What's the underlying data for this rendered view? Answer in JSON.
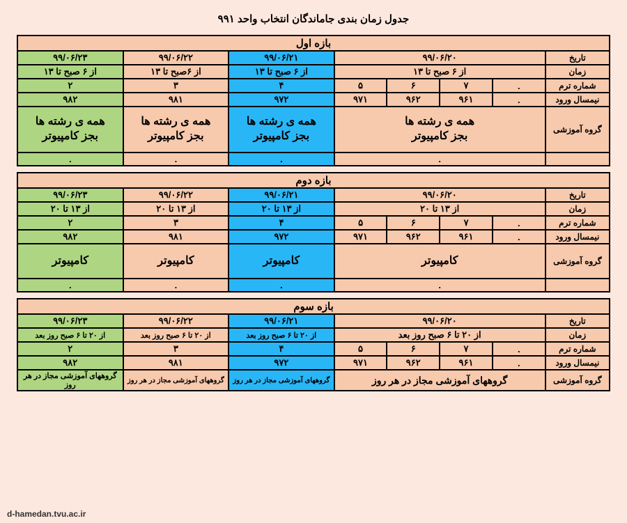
{
  "title": "جدول زمان بندی جاماندگان انتخاب واحد ۹۹۱",
  "footer_url": "d-hamedan.tvu.ac.ir",
  "row_labels": {
    "date": "تاریخ",
    "time": "زمان",
    "term_no": "شماره ترم",
    "entry_sem": "نیمسال ورود",
    "edu_group": "گروه آموزشی"
  },
  "sections": [
    {
      "header": "بازه اول",
      "dates": {
        "wide": "۹۹/۰۶/۲۰",
        "blue": "۹۹/۰۶/۲۱",
        "peach": "۹۹/۰۶/۲۲",
        "green": "۹۹/۰۶/۲۳"
      },
      "times": {
        "wide": "از ۶ صبح تا ۱۳",
        "blue": "از ۶ صبح تا ۱۳",
        "peach": "از ۶صبح تا ۱۳",
        "green": "از ۶ صبح تا ۱۳"
      },
      "terms": {
        "sub": [
          "۷",
          "۶",
          "۵"
        ],
        "subX": ".",
        "blue": "۴",
        "peach": "۳",
        "green": "۲"
      },
      "entry": {
        "sub": [
          "۹۶۱",
          "۹۶۲",
          "۹۷۱"
        ],
        "subX": ".",
        "blue": "۹۷۲",
        "peach": "۹۸۱",
        "green": "۹۸۲"
      },
      "group": {
        "wide": "همه ی رشته ها\nبجز کامپیوتر",
        "blue": "همه ی رشته ها\nبجز کامپیوتر",
        "peach": "همه ی رشته ها\nبجز کامپیوتر",
        "green": "همه ی رشته ها\nبجز کامپیوتر"
      },
      "empty": {
        "wide": ".",
        "blue": ".",
        "peach": ".",
        "green": "."
      }
    },
    {
      "header": "بازه دوم",
      "dates": {
        "wide": "۹۹/۰۶/۲۰",
        "blue": "۹۹/۰۶/۲۱",
        "peach": "۹۹/۰۶/۲۲",
        "green": "۹۹/۰۶/۲۳"
      },
      "times": {
        "wide": "از ۱۳ تا ۲۰",
        "blue": "از ۱۳ تا ۲۰",
        "peach": "از ۱۳ تا ۲۰",
        "green": "از ۱۳ تا ۲۰"
      },
      "terms": {
        "sub": [
          "۷",
          "۶",
          "۵"
        ],
        "subX": ".",
        "blue": "۴",
        "peach": "۳",
        "green": "۲"
      },
      "entry": {
        "sub": [
          "۹۶۱",
          "۹۶۲",
          "۹۷۱"
        ],
        "subX": ".",
        "blue": "۹۷۲",
        "peach": "۹۸۱",
        "green": "۹۸۲"
      },
      "group": {
        "wide": "کامپیوتر",
        "blue": "کامپیوتر",
        "peach": "کامپیوتر",
        "green": "کامپیوتر"
      },
      "empty": {
        "wide": ".",
        "blue": ".",
        "peach": ".",
        "green": "."
      }
    },
    {
      "header": "بازه سوم",
      "dates": {
        "wide": "۹۹/۰۶/۲۰",
        "blue": "۹۹/۰۶/۲۱",
        "peach": "۹۹/۰۶/۲۲",
        "green": "۹۹/۰۶/۲۳"
      },
      "times": {
        "wide": "از ۲۰ تا ۶ صبح روز بعد",
        "blue": "از ۲۰ تا ۶ صبح روز بعد",
        "peach": "از ۲۰ تا ۶ صبح روز بعد",
        "green": "از ۲۰ تا ۶ صبح روز بعد"
      },
      "terms": {
        "sub": [
          "۷",
          "۶",
          "۵"
        ],
        "subX": ".",
        "blue": "۴",
        "peach": "۳",
        "green": "۲"
      },
      "entry": {
        "sub": [
          "۹۶۱",
          "۹۶۲",
          "۹۷۱"
        ],
        "subX": ".",
        "blue": "۹۷۲",
        "peach": "۹۸۱",
        "green": "۹۸۲"
      },
      "group": {
        "wide": "گروههای آموزشی مجاز در هر روز",
        "blue": "گروههای آموزشی مجاز در هر روز",
        "peach": "گروههای آموزشی مجاز در هر روز",
        "green": "گروههای آموزشی مجاز در هر روز"
      }
    }
  ]
}
